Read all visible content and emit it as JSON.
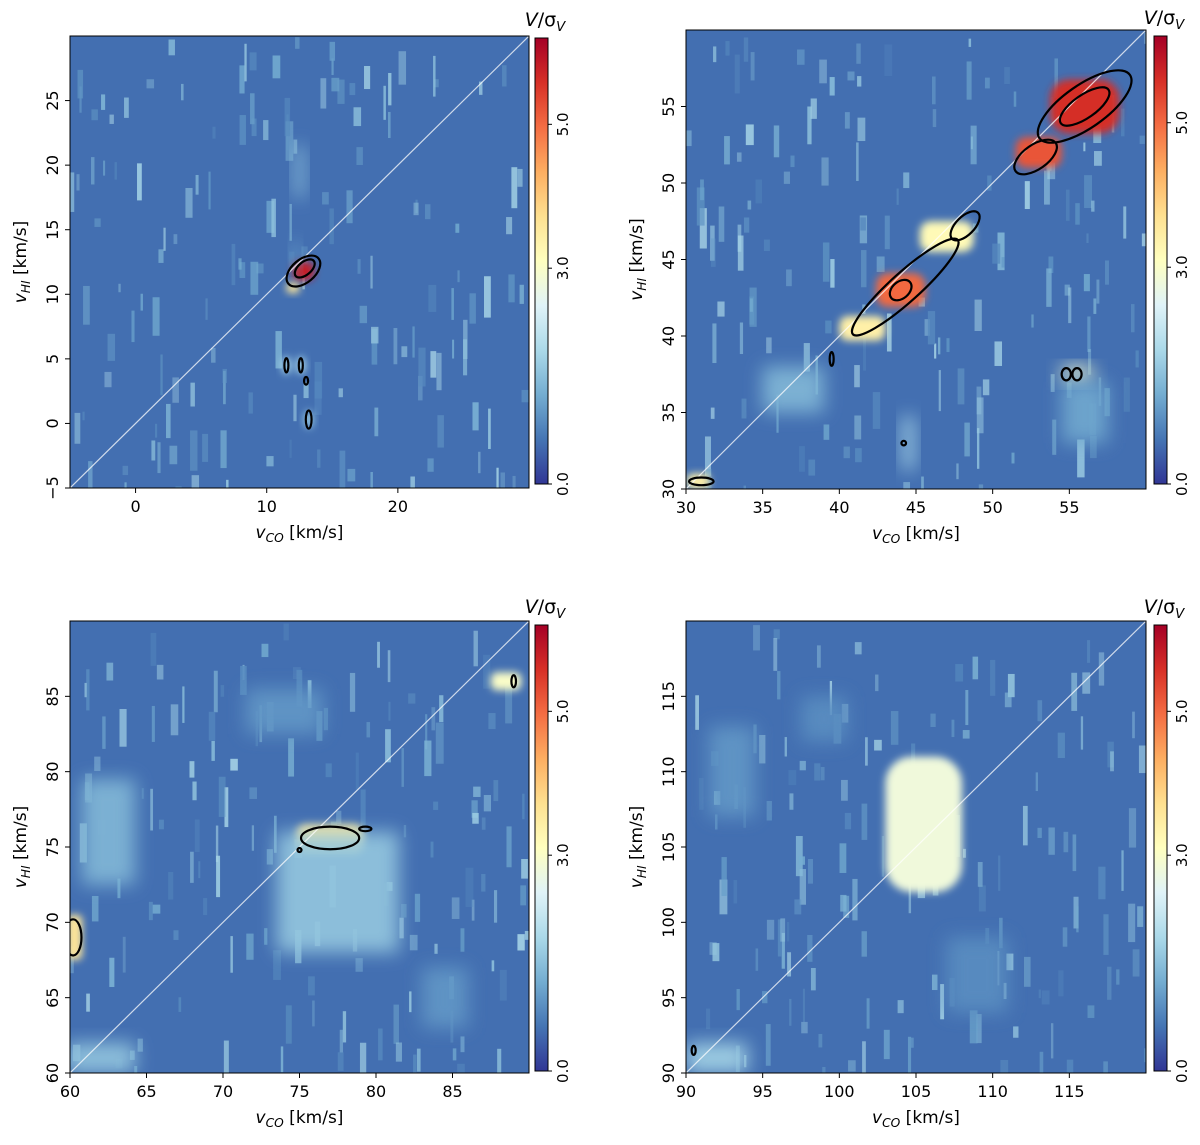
{
  "chart_data": [
    {
      "type": "heatmap",
      "xlabel": "v_CO [km/s]",
      "ylabel": "v_HI [km/s]",
      "xlim": [
        -5,
        30
      ],
      "ylim": [
        -5,
        30
      ],
      "xticks": [
        0,
        10,
        20
      ],
      "yticks": [
        -5,
        0,
        5,
        10,
        15,
        20,
        25
      ],
      "xtick_labels": [
        "0",
        "10",
        "20"
      ],
      "ytick_labels": [
        "−5",
        "0",
        "5",
        "10",
        "15",
        "20",
        "25"
      ],
      "colorbar": {
        "label": "V/σ_V",
        "range": [
          0,
          6.2
        ],
        "ticks": [
          "0.0",
          "3.0",
          "5.0"
        ],
        "tick_values": [
          0,
          3,
          5
        ],
        "colormap": "RdYlBu_r"
      },
      "diagonal": true,
      "features": [
        {
          "type": "blob",
          "x": 12.8,
          "y": 11.8,
          "w": 1.6,
          "h": 1.4,
          "value": 5.8
        },
        {
          "type": "blob",
          "x": 12.0,
          "y": 10.5,
          "w": 1.0,
          "h": 0.8,
          "value": 3.6
        },
        {
          "type": "streak",
          "x": 12.5,
          "y": 19.5,
          "w": 0.8,
          "h": 4.0,
          "value": 1.5
        },
        {
          "type": "streak",
          "x": 12.2,
          "y": 13.0,
          "w": 0.6,
          "h": 2.0,
          "value": 1.2
        },
        {
          "type": "spot",
          "x": 11.5,
          "y": 4.5,
          "value": 1.8
        },
        {
          "type": "spot",
          "x": 12.6,
          "y": 4.5,
          "value": 1.8
        },
        {
          "type": "spot",
          "x": 13.2,
          "y": 0.3,
          "value": 1.6
        }
      ],
      "contours": [
        {
          "x": 12.8,
          "y": 11.8,
          "rx": 1.5,
          "ry": 0.9,
          "rot": -40
        },
        {
          "x": 12.9,
          "y": 12.0,
          "rx": 0.9,
          "ry": 0.5,
          "rot": -40
        },
        {
          "x": 11.5,
          "y": 4.5,
          "rx": 0.12,
          "ry": 0.55,
          "rot": 0
        },
        {
          "x": 12.6,
          "y": 4.5,
          "rx": 0.12,
          "ry": 0.55,
          "rot": 0
        },
        {
          "x": 13.0,
          "y": 3.3,
          "rx": 0.07,
          "ry": 0.3,
          "rot": 0
        },
        {
          "x": 13.2,
          "y": 0.3,
          "rx": 0.22,
          "ry": 0.7,
          "rot": 0
        }
      ]
    },
    {
      "type": "heatmap",
      "xlabel": "v_CO [km/s]",
      "ylabel": "v_HI [km/s]",
      "xlim": [
        30,
        60
      ],
      "ylim": [
        30,
        60
      ],
      "xticks": [
        30,
        35,
        40,
        45,
        50,
        55
      ],
      "yticks": [
        30,
        35,
        40,
        45,
        50,
        55
      ],
      "xtick_labels": [
        "30",
        "35",
        "40",
        "45",
        "50",
        "55"
      ],
      "ytick_labels": [
        "30",
        "35",
        "40",
        "45",
        "50",
        "55"
      ],
      "colorbar": {
        "label": "V/σ_V",
        "range": [
          0,
          6.2
        ],
        "ticks": [
          "0.0",
          "3.0",
          "5.0"
        ],
        "tick_values": [
          0,
          3,
          5
        ],
        "colormap": "RdYlBu_r"
      },
      "diagonal": true,
      "features": [
        {
          "type": "blob",
          "x": 56.0,
          "y": 55.0,
          "w": 4.5,
          "h": 3.5,
          "value": 5.6
        },
        {
          "type": "blob",
          "x": 53.0,
          "y": 52.0,
          "w": 3.0,
          "h": 2.0,
          "value": 5.2
        },
        {
          "type": "blob",
          "x": 44.0,
          "y": 43.0,
          "w": 3.2,
          "h": 2.2,
          "value": 5.0
        },
        {
          "type": "blob",
          "x": 41.5,
          "y": 40.5,
          "w": 3.0,
          "h": 1.6,
          "value": 3.4
        },
        {
          "type": "blob",
          "x": 47.0,
          "y": 46.5,
          "w": 3.5,
          "h": 2.0,
          "value": 3.2
        },
        {
          "type": "blob",
          "x": 30.8,
          "y": 30.5,
          "w": 1.5,
          "h": 1.0,
          "value": 3.4
        },
        {
          "type": "streak",
          "x": 55.5,
          "y": 37.5,
          "w": 2.0,
          "h": 1.0,
          "value": 3.0
        },
        {
          "type": "streak",
          "x": 44.5,
          "y": 33.0,
          "w": 0.8,
          "h": 3.5,
          "value": 1.8
        },
        {
          "type": "streak",
          "x": 37.0,
          "y": 36.5,
          "w": 4.0,
          "h": 3.0,
          "value": 1.4
        },
        {
          "type": "streak",
          "x": 56.0,
          "y": 35.0,
          "w": 3.0,
          "h": 4.0,
          "value": 1.2
        }
      ],
      "contours": [
        {
          "x": 56.0,
          "y": 55.0,
          "rx": 3.6,
          "ry": 1.4,
          "rot": -35
        },
        {
          "x": 56.0,
          "y": 55.0,
          "rx": 1.9,
          "ry": 0.75,
          "rot": -35
        },
        {
          "x": 52.8,
          "y": 51.7,
          "rx": 1.6,
          "ry": 0.8,
          "rot": -35
        },
        {
          "x": 44.3,
          "y": 43.2,
          "rx": 4.6,
          "ry": 0.95,
          "rot": -42
        },
        {
          "x": 44.0,
          "y": 43.0,
          "rx": 0.8,
          "ry": 0.55,
          "rot": -40
        },
        {
          "x": 48.2,
          "y": 47.2,
          "rx": 1.2,
          "ry": 0.6,
          "rot": -45
        },
        {
          "x": 39.5,
          "y": 38.5,
          "rx": 0.12,
          "ry": 0.45,
          "rot": 0
        },
        {
          "x": 31.0,
          "y": 30.5,
          "rx": 0.8,
          "ry": 0.25,
          "rot": 0
        },
        {
          "x": 54.8,
          "y": 37.5,
          "rx": 0.3,
          "ry": 0.4,
          "rot": 0
        },
        {
          "x": 55.5,
          "y": 37.5,
          "rx": 0.3,
          "ry": 0.4,
          "rot": 0
        },
        {
          "x": 44.2,
          "y": 33.0,
          "rx": 0.15,
          "ry": 0.15,
          "rot": 0
        }
      ]
    },
    {
      "type": "heatmap",
      "xlabel": "v_CO [km/s]",
      "ylabel": "v_HI [km/s]",
      "xlim": [
        60,
        90
      ],
      "ylim": [
        60,
        90
      ],
      "xticks": [
        60,
        65,
        70,
        75,
        80,
        85
      ],
      "yticks": [
        60,
        65,
        70,
        75,
        80,
        85
      ],
      "xtick_labels": [
        "60",
        "65",
        "70",
        "75",
        "80",
        "85"
      ],
      "ytick_labels": [
        "60",
        "65",
        "70",
        "75",
        "80",
        "85"
      ],
      "colorbar": {
        "label": "V/σ_V",
        "range": [
          0,
          6.2
        ],
        "ticks": [
          "0.0",
          "3.0",
          "5.0"
        ],
        "tick_values": [
          0,
          3,
          5
        ],
        "colormap": "RdYlBu_r"
      },
      "diagonal": true,
      "features": [
        {
          "type": "blob",
          "x": 77.0,
          "y": 75.5,
          "w": 4.5,
          "h": 2.0,
          "value": 3.6
        },
        {
          "type": "streak",
          "x": 77.5,
          "y": 72.0,
          "w": 8.0,
          "h": 8.0,
          "value": 1.6
        },
        {
          "type": "streak",
          "x": 62.5,
          "y": 76.0,
          "w": 3.5,
          "h": 7.0,
          "value": 1.4
        },
        {
          "type": "blob",
          "x": 60.3,
          "y": 69.0,
          "w": 1.0,
          "h": 3.0,
          "value": 3.6
        },
        {
          "type": "streak",
          "x": 62.0,
          "y": 61.0,
          "w": 4.5,
          "h": 2.0,
          "value": 1.6
        },
        {
          "type": "blob",
          "x": 88.5,
          "y": 86.0,
          "w": 2.0,
          "h": 1.2,
          "value": 3.0
        },
        {
          "type": "streak",
          "x": 84.5,
          "y": 65.0,
          "w": 3.0,
          "h": 4.0,
          "value": 1.0
        },
        {
          "type": "streak",
          "x": 74.0,
          "y": 84.0,
          "w": 5.0,
          "h": 3.0,
          "value": 1.0
        }
      ],
      "contours": [
        {
          "x": 77.0,
          "y": 75.6,
          "rx": 1.9,
          "ry": 0.75,
          "rot": 0
        },
        {
          "x": 79.3,
          "y": 76.2,
          "rx": 0.4,
          "ry": 0.15,
          "rot": 0
        },
        {
          "x": 75.0,
          "y": 74.8,
          "rx": 0.1,
          "ry": 0.1,
          "rot": 0
        },
        {
          "x": 60.2,
          "y": 69.0,
          "rx": 0.55,
          "ry": 1.2,
          "rot": 0
        },
        {
          "x": 89.0,
          "y": 86.0,
          "rx": 0.15,
          "ry": 0.4,
          "rot": 0
        }
      ]
    },
    {
      "type": "heatmap",
      "xlabel": "v_CO [km/s]",
      "ylabel": "v_HI [km/s]",
      "xlim": [
        90,
        120
      ],
      "ylim": [
        90,
        120
      ],
      "xticks": [
        90,
        95,
        100,
        105,
        110,
        115
      ],
      "yticks": [
        90,
        95,
        100,
        105,
        110,
        115
      ],
      "xtick_labels": [
        "90",
        "95",
        "100",
        "105",
        "110",
        "115"
      ],
      "ytick_labels": [
        "90",
        "95",
        "100",
        "105",
        "110",
        "115"
      ],
      "colorbar": {
        "label": "V/σ_V",
        "range": [
          0,
          6.2
        ],
        "ticks": [
          "0.0",
          "3.0",
          "5.0"
        ],
        "tick_values": [
          0,
          3,
          5
        ],
        "colormap": "RdYlBu_r"
      },
      "diagonal": true,
      "features": [
        {
          "type": "blob",
          "x": 105.5,
          "y": 106.5,
          "w": 5.0,
          "h": 9.0,
          "value": 2.8
        },
        {
          "type": "streak",
          "x": 92.0,
          "y": 91.0,
          "w": 4.0,
          "h": 2.0,
          "value": 1.8
        },
        {
          "type": "streak",
          "x": 93.0,
          "y": 110.0,
          "w": 3.0,
          "h": 6.0,
          "value": 1.0
        },
        {
          "type": "streak",
          "x": 99.0,
          "y": 113.5,
          "w": 3.0,
          "h": 3.0,
          "value": 0.9
        },
        {
          "type": "streak",
          "x": 109.0,
          "y": 96.5,
          "w": 4.0,
          "h": 5.0,
          "value": 0.9
        }
      ],
      "contours": [
        {
          "x": 90.5,
          "y": 91.5,
          "rx": 0.1,
          "ry": 0.3,
          "rot": 0
        }
      ]
    }
  ]
}
